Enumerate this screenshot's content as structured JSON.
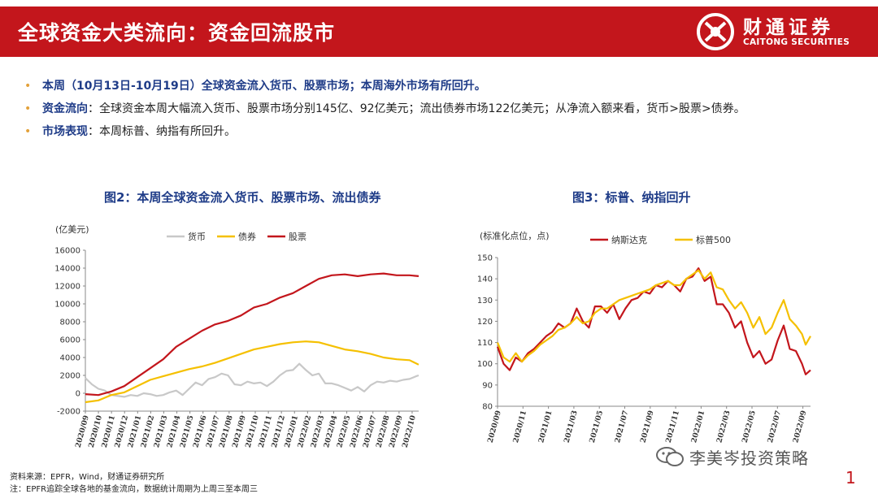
{
  "header": {
    "title": "全球资金大类流向：资金回流股市",
    "logo_cn": "财通证券",
    "logo_en": "CAITONG SECURITIES",
    "brand_color": "#c3161c"
  },
  "bullets": [
    {
      "text": "本周（10月13日-10月19日）全球资金流入货币、股票市场；本周海外市场有所回升。"
    },
    {
      "label": "资金流向",
      "text": "：全球资金本周大幅流入货币、股票市场分别145亿、92亿美元；流出债券市场122亿美元；从净流入额来看，货币>股票>债券。"
    },
    {
      "label": "市场表现",
      "text": "：本周标普、纳指有所回升。"
    }
  ],
  "footer": {
    "source": "资料来源：EPFR，Wind，财通证券研究所",
    "note": "注：EPFR追踪全球各地的基金流向，数据统计周期为上周三至本周三",
    "page_number": "1",
    "watermark": "李美岑投资策略"
  },
  "chart_data": [
    {
      "type": "line",
      "title": "图2：本周全球资金流入货币、股票市场、流出债券",
      "unit_label": "(亿美元)",
      "ylim": [
        -2000,
        16000
      ],
      "yticks": [
        -2000,
        0,
        2000,
        4000,
        6000,
        8000,
        10000,
        12000,
        14000,
        16000
      ],
      "x_tick_labels": [
        "2020/09",
        "2020/10",
        "2020/11",
        "2020/12",
        "2021/01",
        "2021/02",
        "2021/03",
        "2021/04",
        "2021/05",
        "2021/06",
        "2021/07",
        "2021/08",
        "2021/09",
        "2021/10",
        "2021/11",
        "2021/12",
        "2022/01",
        "2022/02",
        "2022/03",
        "2022/04",
        "2022/05",
        "2022/06",
        "2022/07",
        "2022/08",
        "2022/09",
        "2022/10"
      ],
      "xlim": [
        0,
        25.7
      ],
      "legend_position": "top",
      "series": [
        {
          "name": "货币",
          "color": "#c8c8c8",
          "points": [
            [
              0,
              1700
            ],
            [
              0.5,
              1000
            ],
            [
              1,
              500
            ],
            [
              1.5,
              300
            ],
            [
              2,
              -200
            ],
            [
              2.5,
              -300
            ],
            [
              3,
              -400
            ],
            [
              3.5,
              -200
            ],
            [
              4,
              -300
            ],
            [
              4.5,
              0
            ],
            [
              5,
              -100
            ],
            [
              5.5,
              -300
            ],
            [
              6,
              -200
            ],
            [
              6.5,
              100
            ],
            [
              7,
              300
            ],
            [
              7.5,
              -200
            ],
            [
              8,
              500
            ],
            [
              8.5,
              1200
            ],
            [
              9,
              900
            ],
            [
              9.5,
              1600
            ],
            [
              10,
              1800
            ],
            [
              10.5,
              2200
            ],
            [
              11,
              2000
            ],
            [
              11.5,
              1000
            ],
            [
              12,
              900
            ],
            [
              12.5,
              1300
            ],
            [
              13,
              1100
            ],
            [
              13.5,
              1200
            ],
            [
              14,
              800
            ],
            [
              14.5,
              1300
            ],
            [
              15,
              2000
            ],
            [
              15.5,
              2500
            ],
            [
              16,
              2600
            ],
            [
              16.5,
              3300
            ],
            [
              17,
              2600
            ],
            [
              17.5,
              2000
            ],
            [
              18,
              2200
            ],
            [
              18.5,
              1100
            ],
            [
              19,
              1100
            ],
            [
              19.5,
              900
            ],
            [
              20,
              600
            ],
            [
              20.5,
              300
            ],
            [
              21,
              700
            ],
            [
              21.5,
              200
            ],
            [
              22,
              900
            ],
            [
              22.5,
              1300
            ],
            [
              23,
              1200
            ],
            [
              23.5,
              1400
            ],
            [
              24,
              1300
            ],
            [
              24.5,
              1500
            ],
            [
              25,
              1600
            ],
            [
              25.5,
              1900
            ],
            [
              25.7,
              2000
            ]
          ]
        },
        {
          "name": "债券",
          "color": "#f5c000",
          "points": [
            [
              0,
              -1000
            ],
            [
              1,
              -800
            ],
            [
              2,
              -200
            ],
            [
              3,
              100
            ],
            [
              4,
              800
            ],
            [
              5,
              1500
            ],
            [
              6,
              1900
            ],
            [
              7,
              2300
            ],
            [
              8,
              2700
            ],
            [
              9,
              3000
            ],
            [
              10,
              3400
            ],
            [
              11,
              3900
            ],
            [
              12,
              4400
            ],
            [
              13,
              4900
            ],
            [
              14,
              5200
            ],
            [
              15,
              5500
            ],
            [
              16,
              5700
            ],
            [
              17,
              5800
            ],
            [
              18,
              5700
            ],
            [
              19,
              5300
            ],
            [
              20,
              4900
            ],
            [
              21,
              4700
            ],
            [
              22,
              4400
            ],
            [
              23,
              4000
            ],
            [
              24,
              3800
            ],
            [
              25,
              3700
            ],
            [
              25.7,
              3200
            ]
          ]
        },
        {
          "name": "股票",
          "color": "#c3161c",
          "points": [
            [
              0,
              -100
            ],
            [
              1,
              -200
            ],
            [
              2,
              200
            ],
            [
              3,
              800
            ],
            [
              4,
              1800
            ],
            [
              5,
              2800
            ],
            [
              6,
              3800
            ],
            [
              7,
              5200
            ],
            [
              8,
              6100
            ],
            [
              9,
              7000
            ],
            [
              10,
              7700
            ],
            [
              11,
              8100
            ],
            [
              12,
              8700
            ],
            [
              13,
              9600
            ],
            [
              14,
              10000
            ],
            [
              15,
              10700
            ],
            [
              16,
              11200
            ],
            [
              17,
              12000
            ],
            [
              18,
              12800
            ],
            [
              19,
              13200
            ],
            [
              20,
              13300
            ],
            [
              21,
              13100
            ],
            [
              22,
              13300
            ],
            [
              23,
              13400
            ],
            [
              24,
              13200
            ],
            [
              25,
              13200
            ],
            [
              25.7,
              13100
            ]
          ]
        }
      ]
    },
    {
      "type": "line",
      "title": "图3：标普、纳指回升",
      "unit_label": "(标准化点位，点)",
      "ylim": [
        80,
        150
      ],
      "yticks": [
        80,
        90,
        100,
        110,
        120,
        130,
        140,
        150
      ],
      "x_tick_labels": [
        "2020/09",
        "2020/11",
        "2021/01",
        "2021/03",
        "2021/05",
        "2021/07",
        "2021/09",
        "2021/11",
        "2022/01",
        "2022/03",
        "2022/05",
        "2022/07",
        "2022/09"
      ],
      "xlim": [
        0,
        25.7
      ],
      "legend_position": "top",
      "series": [
        {
          "name": "纳斯达克",
          "color": "#c3161c",
          "points": [
            [
              0,
              108
            ],
            [
              0.5,
              100
            ],
            [
              1,
              97
            ],
            [
              1.5,
              103
            ],
            [
              2,
              101
            ],
            [
              2.5,
              105
            ],
            [
              3,
              107
            ],
            [
              3.5,
              110
            ],
            [
              4,
              113
            ],
            [
              4.5,
              115
            ],
            [
              5,
              119
            ],
            [
              5.5,
              117
            ],
            [
              6,
              119
            ],
            [
              6.5,
              126
            ],
            [
              7,
              120
            ],
            [
              7.5,
              117
            ],
            [
              8,
              127
            ],
            [
              8.5,
              127
            ],
            [
              9,
              124
            ],
            [
              9.5,
              128
            ],
            [
              10,
              121
            ],
            [
              10.5,
              126
            ],
            [
              11,
              130
            ],
            [
              11.5,
              131
            ],
            [
              12,
              134
            ],
            [
              12.5,
              133
            ],
            [
              13,
              137
            ],
            [
              13.5,
              136
            ],
            [
              14,
              139
            ],
            [
              14.5,
              137
            ],
            [
              15,
              134
            ],
            [
              15.5,
              140
            ],
            [
              16,
              141
            ],
            [
              16.5,
              145
            ],
            [
              17,
              139
            ],
            [
              17.5,
              141
            ],
            [
              18,
              128
            ],
            [
              18.5,
              128
            ],
            [
              19,
              124
            ],
            [
              19.5,
              117
            ],
            [
              20,
              120
            ],
            [
              20.5,
              110
            ],
            [
              21,
              103
            ],
            [
              21.5,
              106
            ],
            [
              22,
              100
            ],
            [
              22.5,
              102
            ],
            [
              23,
              111
            ],
            [
              23.5,
              118
            ],
            [
              24,
              107
            ],
            [
              24.5,
              106
            ],
            [
              25,
              100
            ],
            [
              25.3,
              95
            ],
            [
              25.7,
              97
            ]
          ]
        },
        {
          "name": "标普500",
          "color": "#f5c000",
          "points": [
            [
              0,
              110
            ],
            [
              0.5,
              103
            ],
            [
              1,
              101
            ],
            [
              1.5,
              105
            ],
            [
              2,
              101
            ],
            [
              2.5,
              104
            ],
            [
              3,
              106
            ],
            [
              3.5,
              109
            ],
            [
              4,
              111
            ],
            [
              4.5,
              113
            ],
            [
              5,
              116
            ],
            [
              5.5,
              117
            ],
            [
              6,
              119
            ],
            [
              6.5,
              122
            ],
            [
              7,
              119
            ],
            [
              7.5,
              120
            ],
            [
              8,
              124
            ],
            [
              8.5,
              126
            ],
            [
              9,
              126
            ],
            [
              9.5,
              128
            ],
            [
              10,
              130
            ],
            [
              10.5,
              131
            ],
            [
              11,
              132
            ],
            [
              11.5,
              133
            ],
            [
              12,
              134
            ],
            [
              12.5,
              135
            ],
            [
              13,
              137
            ],
            [
              13.5,
              138
            ],
            [
              14,
              139
            ],
            [
              14.5,
              137
            ],
            [
              15,
              137
            ],
            [
              15.5,
              140
            ],
            [
              16,
              142
            ],
            [
              16.5,
              144
            ],
            [
              17,
              140
            ],
            [
              17.5,
              143
            ],
            [
              18,
              136
            ],
            [
              18.5,
              135
            ],
            [
              19,
              130
            ],
            [
              19.5,
              126
            ],
            [
              20,
              129
            ],
            [
              20.5,
              124
            ],
            [
              21,
              117
            ],
            [
              21.5,
              122
            ],
            [
              22,
              114
            ],
            [
              22.5,
              117
            ],
            [
              23,
              124
            ],
            [
              23.5,
              130
            ],
            [
              24,
              121
            ],
            [
              24.5,
              118
            ],
            [
              25,
              114
            ],
            [
              25.3,
              109
            ],
            [
              25.7,
              113
            ]
          ]
        }
      ]
    }
  ]
}
